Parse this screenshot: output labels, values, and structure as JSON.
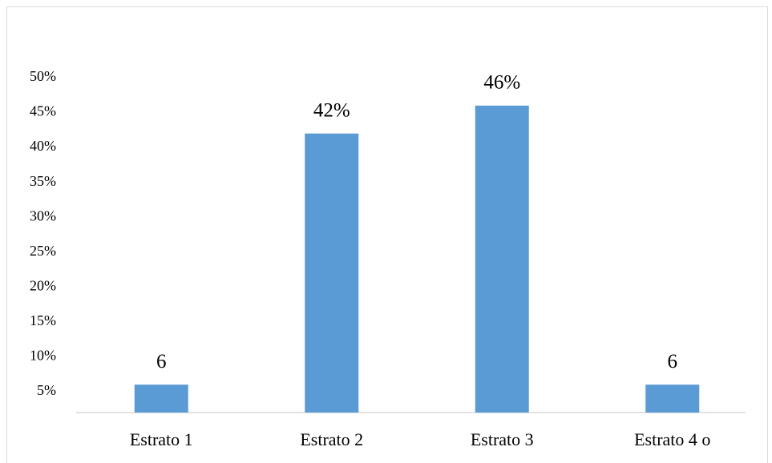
{
  "chart_data": {
    "type": "bar",
    "categories": [
      "Estrato 1",
      "Estrato 2",
      "Estrato 3",
      "Estrato 4 o"
    ],
    "values": [
      6,
      42,
      46,
      6
    ],
    "value_labels": [
      "6",
      "42%",
      "46%",
      "6"
    ],
    "color": "#5b9bd5",
    "ylim": [
      2,
      50
    ],
    "yticks": [
      {
        "value": 5,
        "label": "5%"
      },
      {
        "value": 10,
        "label": "10%"
      },
      {
        "value": 15,
        "label": "15%"
      },
      {
        "value": 20,
        "label": "20%"
      },
      {
        "value": 25,
        "label": "25%"
      },
      {
        "value": 30,
        "label": "30%"
      },
      {
        "value": 35,
        "label": "35%"
      },
      {
        "value": 40,
        "label": "40%"
      },
      {
        "value": 45,
        "label": "45%"
      },
      {
        "value": 50,
        "label": "50%"
      }
    ],
    "grid": false
  }
}
